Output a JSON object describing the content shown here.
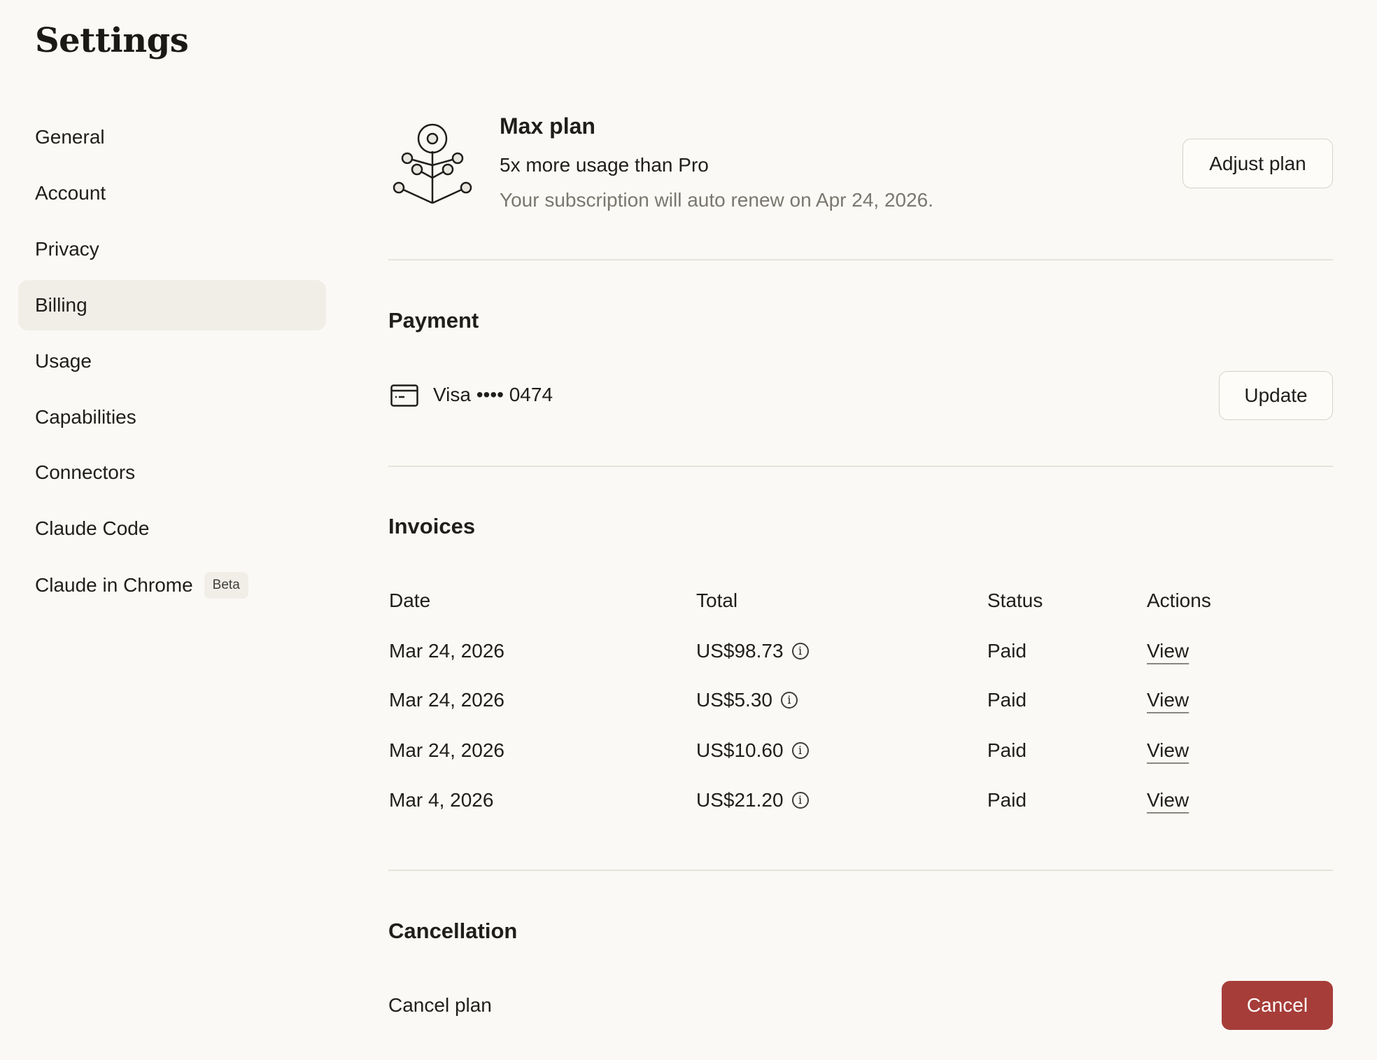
{
  "page_title": "Settings",
  "sidebar": {
    "items": [
      {
        "label": "General"
      },
      {
        "label": "Account"
      },
      {
        "label": "Privacy"
      },
      {
        "label": "Billing",
        "active": true
      },
      {
        "label": "Usage"
      },
      {
        "label": "Capabilities"
      },
      {
        "label": "Connectors"
      },
      {
        "label": "Claude Code"
      },
      {
        "label": "Claude in Chrome",
        "badge": "Beta"
      }
    ]
  },
  "plan": {
    "icon": "plant-network-icon",
    "name": "Max plan",
    "description": "5x more usage than Pro",
    "renewal": "Your subscription will auto renew on Apr 24, 2026.",
    "adjust_label": "Adjust plan"
  },
  "payment": {
    "heading": "Payment",
    "card_icon": "credit-card-icon",
    "card": "Visa •••• 0474",
    "update_label": "Update"
  },
  "invoices": {
    "heading": "Invoices",
    "columns": [
      "Date",
      "Total",
      "Status",
      "Actions"
    ],
    "rows": [
      {
        "date": "Mar 24, 2026",
        "total": "US$98.73",
        "status": "Paid",
        "action": "View"
      },
      {
        "date": "Mar 24, 2026",
        "total": "US$5.30",
        "status": "Paid",
        "action": "View"
      },
      {
        "date": "Mar 24, 2026",
        "total": "US$10.60",
        "status": "Paid",
        "action": "View"
      },
      {
        "date": "Mar 4, 2026",
        "total": "US$21.20",
        "status": "Paid",
        "action": "View"
      }
    ]
  },
  "cancellation": {
    "heading": "Cancellation",
    "label": "Cancel plan",
    "button_label": "Cancel"
  },
  "colors": {
    "background": "#faf9f5",
    "active_nav": "#f0eee6",
    "danger": "#a63d39"
  }
}
